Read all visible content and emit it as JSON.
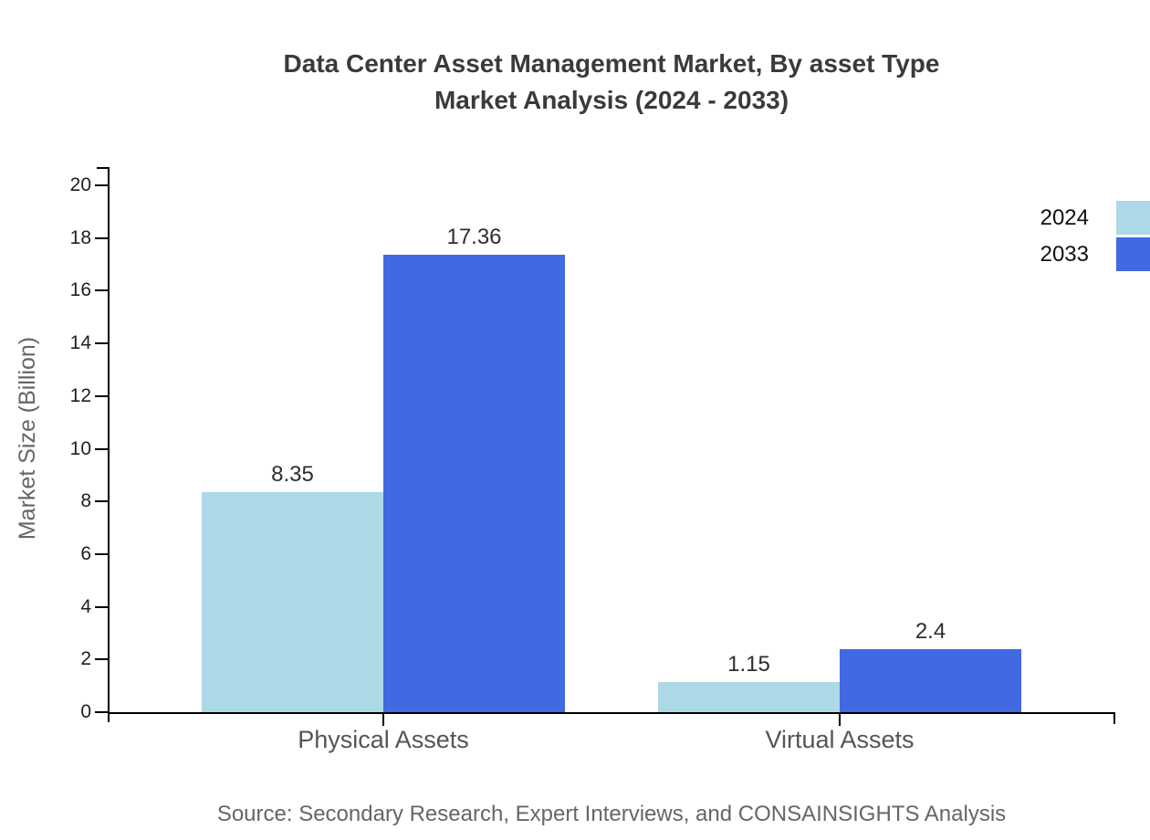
{
  "title": {
    "line1": "Data Center Asset Management Market, By asset Type",
    "line2": "Market Analysis (2024 - 2033)"
  },
  "source": "Source: Secondary Research, Expert Interviews, and CONSAINSIGHTS Analysis",
  "chart_data": {
    "type": "bar",
    "title": "Data Center Asset Management Market, By asset Type Market Analysis (2024 - 2033)",
    "categories": [
      "Physical Assets",
      "Virtual Assets"
    ],
    "series": [
      {
        "name": "2024",
        "color": "#ADD8E6",
        "values": [
          8.35,
          1.15
        ]
      },
      {
        "name": "2033",
        "color": "#4169E1",
        "values": [
          17.36,
          2.4
        ]
      }
    ],
    "xlabel": "",
    "ylabel": "Market Size (Billion)",
    "ylim": [
      0,
      20
    ],
    "ytick_step": 2,
    "ytick_labels": [
      "0",
      "2",
      "4",
      "6",
      "8",
      "10",
      "12",
      "14",
      "16",
      "18",
      "20"
    ],
    "grid": false,
    "legend_position": "top-right",
    "axis_color": "#000000",
    "value_label_color": "#2e2e2e"
  }
}
